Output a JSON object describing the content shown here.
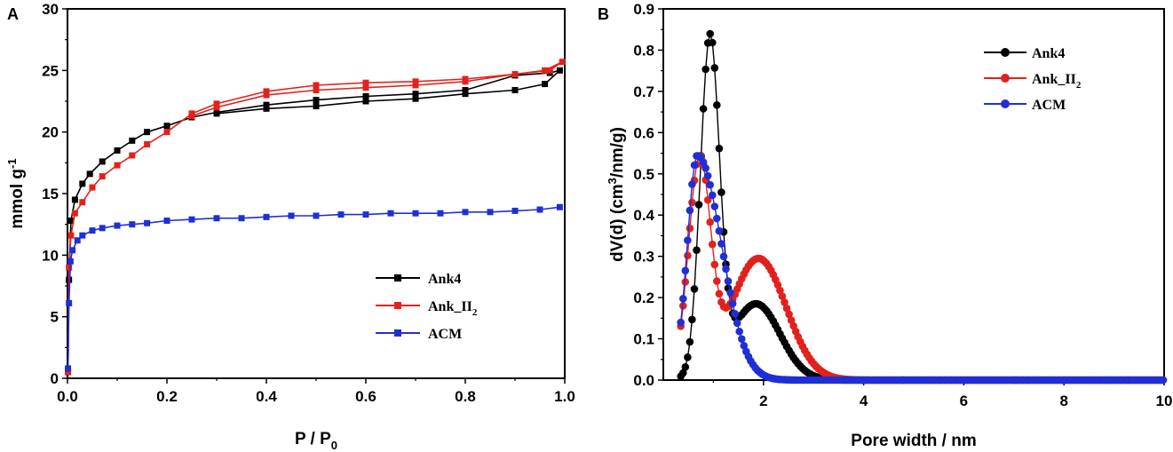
{
  "chart_data": [
    {
      "type": "line",
      "panel_label": "A",
      "title": "",
      "xlabel": "P / P",
      "xlabel_sub": "0",
      "ylabel": "mmol g",
      "ylabel_sup": "-1",
      "xlim": [
        0,
        1.0
      ],
      "ylim": [
        0,
        30
      ],
      "x_ticks": [
        "0.0",
        "0.2",
        "0.4",
        "0.6",
        "0.8",
        "1.0"
      ],
      "y_ticks": [
        "0",
        "5",
        "10",
        "15",
        "20",
        "25",
        "30"
      ],
      "legend_position": "lower-right",
      "series": [
        {
          "name": "Ank4",
          "name_sub": "",
          "color": "#000000",
          "marker": "square",
          "x": [
            0.001,
            0.003,
            0.007,
            0.015,
            0.03,
            0.045,
            0.07,
            0.1,
            0.13,
            0.16,
            0.2,
            0.25,
            0.3,
            0.4,
            0.5,
            0.6,
            0.7,
            0.8,
            0.9,
            0.97,
            0.99,
            0.96,
            0.9,
            0.8,
            0.7,
            0.6,
            0.5,
            0.4,
            0.3
          ],
          "y": [
            0.5,
            8.0,
            12.8,
            14.5,
            15.8,
            16.6,
            17.6,
            18.5,
            19.3,
            20.0,
            20.5,
            21.2,
            21.6,
            22.2,
            22.6,
            22.9,
            23.1,
            23.4,
            24.6,
            24.8,
            25.0,
            23.9,
            23.4,
            23.1,
            22.7,
            22.5,
            22.1,
            21.9,
            21.5
          ]
        },
        {
          "name": "Ank_II",
          "name_sub": "2",
          "color": "#e3211c",
          "marker": "square",
          "x": [
            0.001,
            0.003,
            0.007,
            0.015,
            0.03,
            0.05,
            0.07,
            0.1,
            0.13,
            0.16,
            0.2,
            0.25,
            0.3,
            0.4,
            0.5,
            0.6,
            0.7,
            0.8,
            0.9,
            0.97,
            0.995,
            0.96,
            0.9,
            0.8,
            0.7,
            0.6,
            0.5,
            0.4,
            0.3,
            0.25
          ],
          "y": [
            0.5,
            9.0,
            11.6,
            13.4,
            14.3,
            15.5,
            16.4,
            17.3,
            18.1,
            19.0,
            20.0,
            21.5,
            22.3,
            23.3,
            23.8,
            24.0,
            24.1,
            24.3,
            24.7,
            25.0,
            25.7,
            25.0,
            24.7,
            24.1,
            23.8,
            23.6,
            23.4,
            23.0,
            22.0,
            21.3
          ]
        },
        {
          "name": "ACM",
          "name_sub": "",
          "color": "#1f2fd6",
          "marker": "square",
          "x": [
            0.001,
            0.003,
            0.006,
            0.01,
            0.02,
            0.03,
            0.05,
            0.07,
            0.1,
            0.13,
            0.16,
            0.2,
            0.25,
            0.3,
            0.35,
            0.4,
            0.45,
            0.5,
            0.55,
            0.6,
            0.65,
            0.7,
            0.75,
            0.8,
            0.85,
            0.9,
            0.95,
            0.99
          ],
          "y": [
            0.8,
            6.1,
            9.5,
            10.4,
            11.2,
            11.6,
            12.0,
            12.2,
            12.4,
            12.5,
            12.6,
            12.8,
            12.9,
            13.0,
            13.0,
            13.1,
            13.2,
            13.2,
            13.3,
            13.3,
            13.4,
            13.4,
            13.4,
            13.5,
            13.5,
            13.6,
            13.7,
            13.9
          ]
        }
      ]
    },
    {
      "type": "line",
      "panel_label": "B",
      "title": "",
      "xlabel": "Pore width / nm",
      "ylabel": "dV(d)  (cm",
      "ylabel_sup": "3",
      "ylabel_end": "/nm/g)",
      "xlim": [
        0,
        10
      ],
      "ylim": [
        0,
        0.9
      ],
      "x_ticks": [
        "2",
        "4",
        "6",
        "8",
        "10"
      ],
      "y_ticks": [
        "0.0",
        "0.1",
        "0.2",
        "0.3",
        "0.4",
        "0.5",
        "0.6",
        "0.7",
        "0.8",
        "0.9"
      ],
      "legend_position": "top-right",
      "series": [
        {
          "name": "Ank4",
          "name_sub": "",
          "color": "#000000",
          "marker": "circle",
          "curve": [
            {
              "mu": 0.93,
              "sigma": 0.19,
              "amp": 0.81
            },
            {
              "mu": 1.85,
              "sigma": 0.48,
              "amp": 0.185
            }
          ]
        },
        {
          "name": "Ank_II",
          "name_sub": "2",
          "color": "#e3211c",
          "marker": "circle",
          "curve": [
            {
              "mu": 0.72,
              "sigma": 0.22,
              "amp": 0.515
            },
            {
              "mu": 1.9,
              "sigma": 0.55,
              "amp": 0.295
            }
          ]
        },
        {
          "name": "ACM",
          "name_sub": "",
          "color": "#1f2fd6",
          "marker": "circle",
          "curve": [
            {
              "mu": 0.68,
              "sigma": 0.2,
              "amp": 0.545,
              "right_sigma": 0.48
            }
          ]
        }
      ]
    }
  ]
}
